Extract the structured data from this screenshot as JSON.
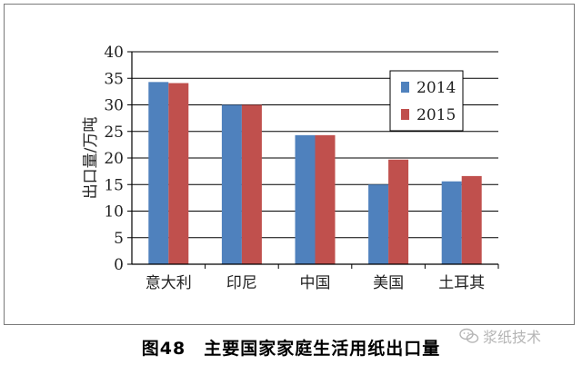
{
  "chart_data": {
    "type": "bar",
    "title": "",
    "xlabel": "",
    "ylabel": "出口量/万吨",
    "categories": [
      "意大利",
      "印尼",
      "中国",
      "美国",
      "土耳其"
    ],
    "series": [
      {
        "name": "2014",
        "color": "#4f81bd",
        "values": [
          34.3,
          30.0,
          24.3,
          15.0,
          15.6
        ]
      },
      {
        "name": "2015",
        "color": "#c0504d",
        "values": [
          34.1,
          30.0,
          24.3,
          19.7,
          16.6
        ]
      }
    ],
    "ylim": [
      0,
      40
    ],
    "yticks": [
      0,
      5,
      10,
      15,
      20,
      25,
      30,
      35,
      40
    ],
    "grid": true,
    "legend_position": "right"
  },
  "caption": "图48　主要国家家庭生活用纸出口量",
  "watermark": {
    "text": "浆纸技术",
    "icon": "wechat-icon"
  }
}
